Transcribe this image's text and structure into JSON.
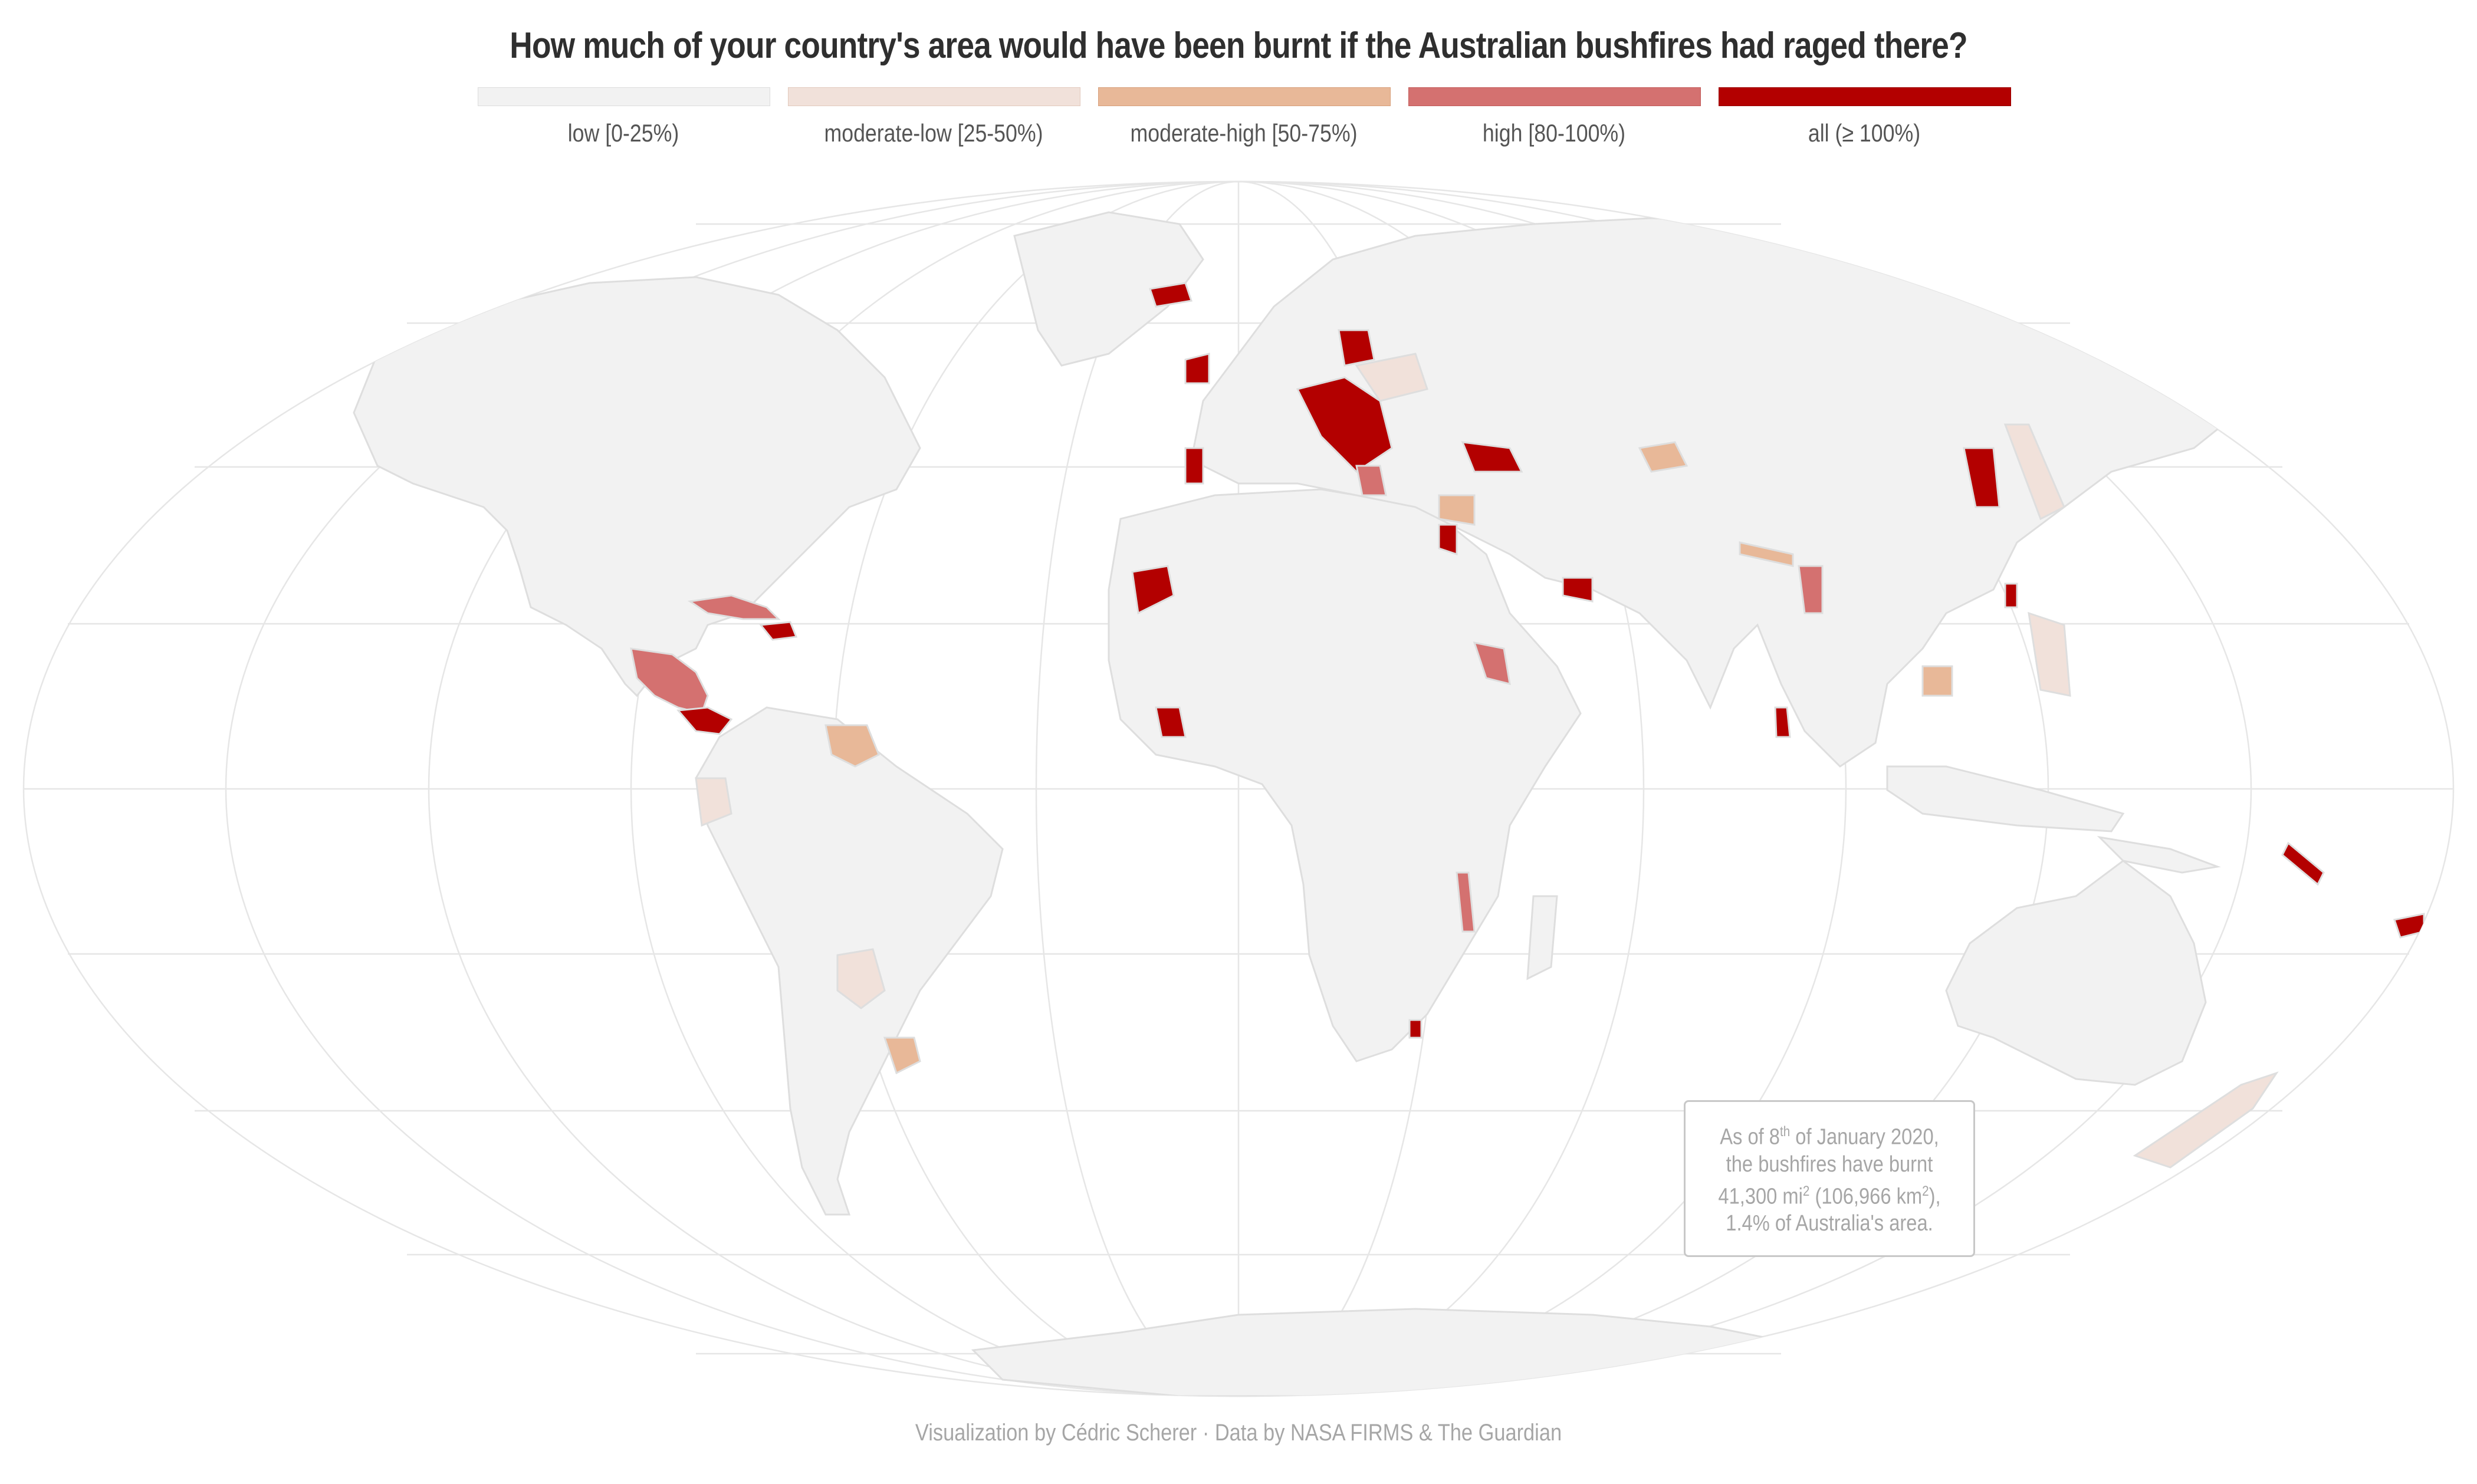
{
  "title": "How much of your country's area would have been burnt if the Australian bushfires had raged there?",
  "legend": [
    {
      "label": "low [0-25%)",
      "color": "#f2f2f2"
    },
    {
      "label": "moderate-low [25-50%)",
      "color": "#f1e1da"
    },
    {
      "label": "moderate-high [50-75%)",
      "color": "#e8b898"
    },
    {
      "label": "high [80-100%)",
      "color": "#d47170"
    },
    {
      "label": "all (≥ 100%)",
      "color": "#b30000"
    }
  ],
  "colors": {
    "land": "#f2f2f2",
    "border": "#dedede",
    "graticule": "#e6e6e6",
    "low": "#f2f2f2",
    "moderate_low": "#f1e1da",
    "moderate_high": "#e8b898",
    "high": "#d47170",
    "all": "#b30000"
  },
  "note": {
    "line1_pre": "As of 8",
    "line1_sup": "th",
    "line1_post": " of January 2020,",
    "line2": "the bushfires have burnt",
    "line3_pre": "41,300 mi",
    "line3_sup1": "2",
    "line3_mid": " (106,966 km",
    "line3_sup2": "2",
    "line3_post": "),",
    "line4": "1.4% of Australia's area."
  },
  "credit": "Visualization by Cédric Scherer  ·  Data by NASA FIRMS & The Guardian",
  "map_data": {
    "projection": "mollweide",
    "graticule": true,
    "regions": [
      {
        "name": "north-america",
        "category": "low"
      },
      {
        "name": "greenland",
        "category": "low"
      },
      {
        "name": "south-america",
        "category": "low"
      },
      {
        "name": "africa",
        "category": "low"
      },
      {
        "name": "eurasia",
        "category": "low"
      },
      {
        "name": "australia",
        "category": "low"
      },
      {
        "name": "antarctica",
        "category": "low"
      },
      {
        "name": "iceland",
        "category": "all"
      },
      {
        "name": "ireland",
        "category": "all"
      },
      {
        "name": "portugal",
        "category": "all"
      },
      {
        "name": "hungary-balkans",
        "category": "all"
      },
      {
        "name": "belarus",
        "category": "all"
      },
      {
        "name": "ukraine",
        "category": "moderate_low"
      },
      {
        "name": "georgia",
        "category": "all"
      },
      {
        "name": "cuba",
        "category": "high"
      },
      {
        "name": "central-america",
        "category": "high"
      },
      {
        "name": "panama",
        "category": "all"
      },
      {
        "name": "western-sahara",
        "category": "all"
      },
      {
        "name": "liberia",
        "category": "all"
      },
      {
        "name": "eritrea",
        "category": "high"
      },
      {
        "name": "malawi",
        "category": "high"
      },
      {
        "name": "sri-lanka",
        "category": "all"
      },
      {
        "name": "south-korea",
        "category": "all"
      },
      {
        "name": "taiwan",
        "category": "all"
      },
      {
        "name": "guyana",
        "category": "moderate_high"
      },
      {
        "name": "uruguay",
        "category": "moderate_high"
      },
      {
        "name": "syria",
        "category": "moderate_high"
      },
      {
        "name": "tajikistan",
        "category": "moderate_high"
      },
      {
        "name": "nepal",
        "category": "moderate_high"
      },
      {
        "name": "cambodia",
        "category": "moderate_high"
      },
      {
        "name": "new-zealand",
        "category": "moderate_low"
      },
      {
        "name": "japan",
        "category": "moderate_low"
      },
      {
        "name": "new-caledonia",
        "category": "all"
      },
      {
        "name": "fiji",
        "category": "all"
      }
    ]
  }
}
